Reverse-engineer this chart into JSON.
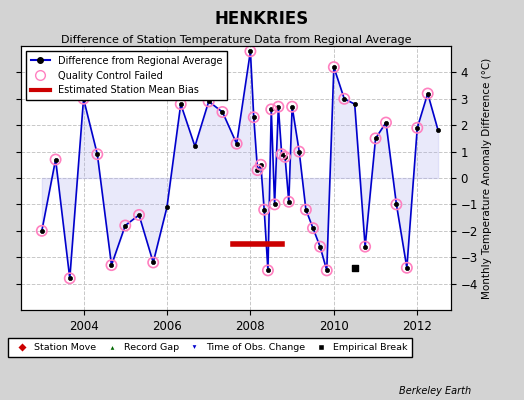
{
  "title": "HENKRIES",
  "subtitle": "Difference of Station Temperature Data from Regional Average",
  "ylabel_right": "Monthly Temperature Anomaly Difference (°C)",
  "xlabel_bottom": "Berkeley Earth",
  "ylim": [
    -5,
    5
  ],
  "xlim": [
    2002.5,
    2012.8
  ],
  "yticks": [
    -4,
    -3,
    -2,
    -1,
    0,
    1,
    2,
    3,
    4
  ],
  "xticks": [
    2004,
    2006,
    2008,
    2010,
    2012
  ],
  "background_color": "#d3d3d3",
  "plot_bg_color": "#ffffff",
  "grid_color": "#c8c8c8",
  "line_color": "#0000cc",
  "line_fill_color": "#aaaaee",
  "bias_line_color": "#cc0000",
  "bias_x_start": 2007.58,
  "bias_x_end": 2008.75,
  "bias_y": -2.5,
  "time_series_x": [
    2003.0,
    2003.33,
    2003.67,
    2004.0,
    2004.33,
    2004.67,
    2005.0,
    2005.33,
    2005.67,
    2006.0,
    2006.33,
    2006.67,
    2007.0,
    2007.33,
    2007.67,
    2008.0,
    2008.08,
    2008.17,
    2008.25,
    2008.33,
    2008.42,
    2008.5,
    2008.58,
    2008.67,
    2008.75,
    2008.83,
    2008.92,
    2009.0,
    2009.17,
    2009.33,
    2009.5,
    2009.67,
    2009.83,
    2010.0,
    2010.25,
    2010.5,
    2010.75,
    2011.0,
    2011.25,
    2011.5,
    2011.75,
    2012.0,
    2012.25,
    2012.5
  ],
  "time_series_y": [
    -2.0,
    0.7,
    -3.8,
    3.0,
    0.9,
    -3.3,
    -1.8,
    -1.4,
    -3.2,
    -1.1,
    2.8,
    1.2,
    2.9,
    2.5,
    1.3,
    4.8,
    2.3,
    0.3,
    0.5,
    -1.2,
    -3.5,
    2.6,
    -1.0,
    2.7,
    0.9,
    0.8,
    -0.9,
    2.7,
    1.0,
    -1.2,
    -1.9,
    -2.6,
    -3.5,
    4.2,
    3.0,
    2.8,
    -2.6,
    1.5,
    2.1,
    -1.0,
    -3.4,
    1.9,
    3.2,
    1.8
  ],
  "qc_failed_x": [
    2003.0,
    2003.33,
    2003.67,
    2004.0,
    2004.33,
    2004.67,
    2005.0,
    2005.33,
    2005.67,
    2006.33,
    2007.0,
    2007.33,
    2007.67,
    2008.0,
    2008.08,
    2008.17,
    2008.25,
    2008.33,
    2008.42,
    2008.5,
    2008.58,
    2008.67,
    2008.75,
    2008.83,
    2008.92,
    2009.0,
    2009.17,
    2009.33,
    2009.5,
    2009.67,
    2009.83,
    2010.0,
    2010.25,
    2010.75,
    2011.0,
    2011.25,
    2011.5,
    2011.75,
    2012.0,
    2012.25
  ],
  "qc_failed_y": [
    -2.0,
    0.7,
    -3.8,
    3.0,
    0.9,
    -3.3,
    -1.8,
    -1.4,
    -3.2,
    2.8,
    2.9,
    2.5,
    1.3,
    4.8,
    2.3,
    0.3,
    0.5,
    -1.2,
    -3.5,
    2.6,
    -1.0,
    2.7,
    0.9,
    0.8,
    -0.9,
    2.7,
    1.0,
    -1.2,
    -1.9,
    -2.6,
    -3.5,
    4.2,
    3.0,
    -2.6,
    1.5,
    2.1,
    -1.0,
    -3.4,
    1.9,
    3.2
  ],
  "empirical_break_x": [
    2010.5
  ],
  "empirical_break_y": [
    -3.4
  ],
  "obs_change_x": [],
  "obs_change_y": []
}
